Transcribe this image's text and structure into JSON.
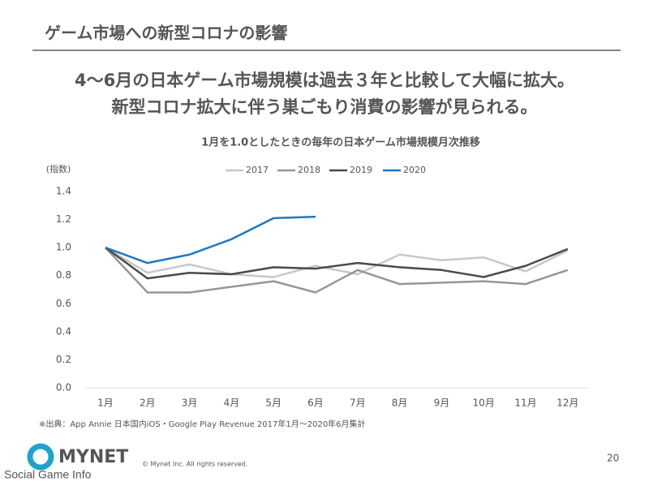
{
  "header": {
    "title": "ゲーム市場への新型コロナの影響"
  },
  "headline": [
    "4～6月の日本ゲーム市場規模は過去３年と比較して大幅に拡大。",
    "新型コロナ拡大に伴う巣ごもり消費の影響が見られる。"
  ],
  "chart_data": {
    "type": "line",
    "title": "1月を1.0としたときの毎年の日本ゲーム市場規模月次推移",
    "ylabel": "(指数)",
    "categories": [
      "1月",
      "2月",
      "3月",
      "4月",
      "5月",
      "6月",
      "7月",
      "8月",
      "9月",
      "10月",
      "11月",
      "12月"
    ],
    "series": [
      {
        "name": "2017",
        "color": "#c8c8c8",
        "values": [
          1.0,
          0.82,
          0.88,
          0.81,
          0.79,
          0.87,
          0.81,
          0.95,
          0.91,
          0.93,
          0.83,
          0.98
        ]
      },
      {
        "name": "2018",
        "color": "#969696",
        "values": [
          1.0,
          0.68,
          0.68,
          0.72,
          0.76,
          0.68,
          0.84,
          0.74,
          0.75,
          0.76,
          0.74,
          0.84
        ]
      },
      {
        "name": "2019",
        "color": "#4a4a4a",
        "values": [
          1.0,
          0.78,
          0.82,
          0.81,
          0.86,
          0.85,
          0.89,
          0.86,
          0.84,
          0.79,
          0.87,
          0.99
        ]
      },
      {
        "name": "2020",
        "color": "#1f78c1",
        "values": [
          1.0,
          0.89,
          0.95,
          1.06,
          1.21,
          1.22,
          null,
          null,
          null,
          null,
          null,
          null
        ]
      }
    ],
    "ylim": [
      0,
      1.4
    ],
    "yticks": [
      {
        "value": 0,
        "label": "0.0"
      },
      {
        "value": 0.2,
        "label": "0.2"
      },
      {
        "value": 0.4,
        "label": "0.4"
      },
      {
        "value": 0.6,
        "label": "0.6"
      },
      {
        "value": 0.8,
        "label": "0.8"
      },
      {
        "value": 1.0,
        "label": "1.0"
      },
      {
        "value": 1.2,
        "label": "1.2"
      },
      {
        "value": 1.4,
        "label": "1.4"
      }
    ],
    "grid": false,
    "legend": "top"
  },
  "source": "※出典：App Annie 日本国内iOS・Google Play Revenue 2017年1月～2020年6月集計",
  "footer": {
    "logo": "MYNET",
    "copyright": "© Mynet Inc. All rights reserved.",
    "page": "20",
    "watermark": "Social Game Info"
  }
}
